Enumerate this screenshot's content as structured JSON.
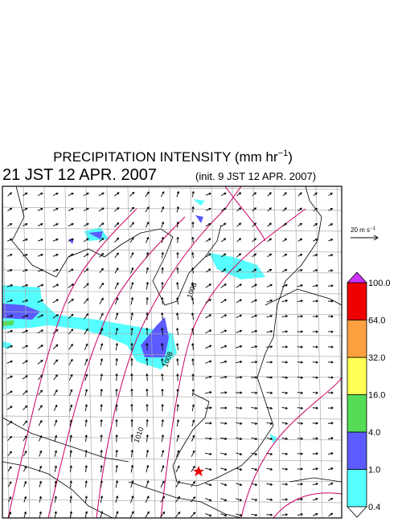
{
  "header": {
    "title": "PRECIPITATION INTENSITY (mm hr",
    "title_exponent": "−1",
    "title_end": ")",
    "valid_time": "21 JST 12 APR. 2007",
    "init_time": "(init. 9 JST 12 APR. 2007)"
  },
  "wind_scale": {
    "label": "20 m s",
    "exponent": "−1"
  },
  "legend": {
    "levels": [
      {
        "value": 0.4,
        "label": "0.4"
      },
      {
        "value": 1,
        "label": "1.0"
      },
      {
        "value": 4,
        "label": "4.0"
      },
      {
        "value": 16,
        "label": "16.0"
      },
      {
        "value": 32,
        "label": "32.0"
      },
      {
        "value": 64,
        "label": "64.0"
      },
      {
        "value": 100,
        "label": "100.0"
      }
    ],
    "colors": [
      "#55ffff",
      "#5b5bff",
      "#55dd55",
      "#ffff55",
      "#ffa040",
      "#ee0000"
    ],
    "under_color": "#ffffff",
    "over_color": "#cc33ff"
  },
  "contour_labels": [
    "1008",
    "1008",
    "1010"
  ]
}
